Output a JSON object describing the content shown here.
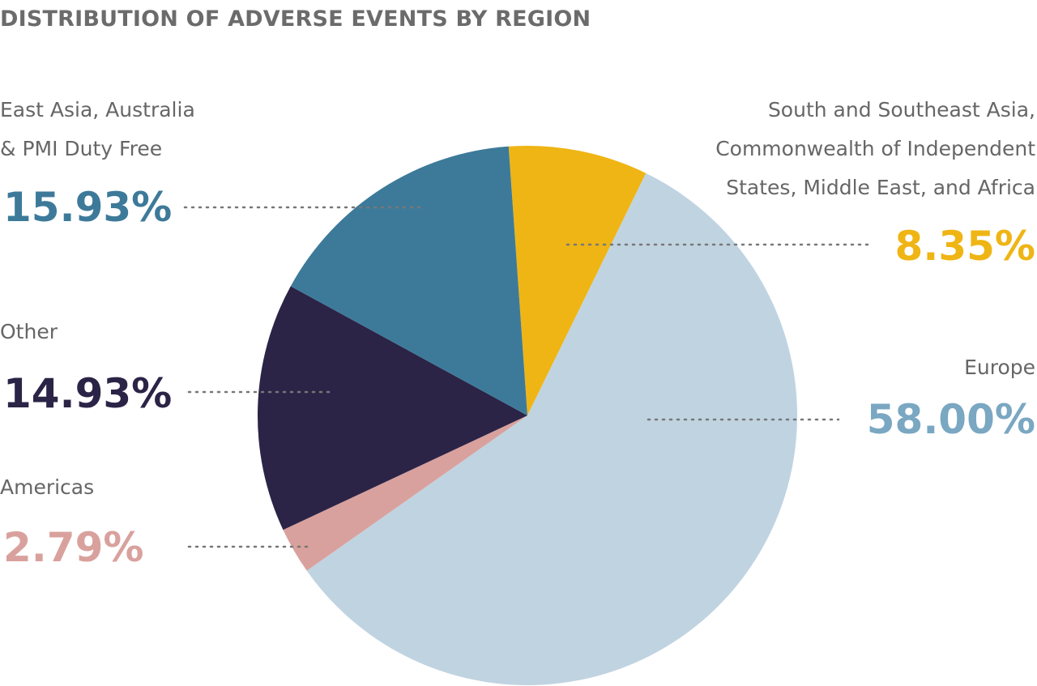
{
  "chart_data": {
    "type": "pie",
    "title": "DISTRIBUTION OF ADVERSE EVENTS BY REGION",
    "slices": [
      {
        "label": "South and Southeast Asia, Commonwealth of Independent States, Middle East, and Africa",
        "value": 8.35,
        "display": "8.35%",
        "color": "#efb515",
        "text_color": "#efb515"
      },
      {
        "label": "Europe",
        "value": 58.0,
        "display": "58.00%",
        "color": "#c0d3e1",
        "text_color": "#7aa7c2"
      },
      {
        "label": "Americas",
        "value": 2.79,
        "display": "2.79%",
        "color": "#d9a19d",
        "text_color": "#d9a19d"
      },
      {
        "label": "Other",
        "value": 14.93,
        "display": "14.93%",
        "color": "#2b2447",
        "text_color": "#2b2447"
      },
      {
        "label": "East Asia, Australia & PMI Duty Free",
        "value": 15.93,
        "display": "15.93%",
        "color": "#3d7a9a",
        "text_color": "#3d7a9a"
      }
    ],
    "label_lines": {
      "sseaa": [
        "South and Southeast Asia,",
        "Commonwealth of Independent",
        "States, Middle East, and Africa"
      ],
      "eastasia": [
        "East Asia, Australia",
        "& PMI Duty Free"
      ]
    },
    "legend": "none"
  }
}
